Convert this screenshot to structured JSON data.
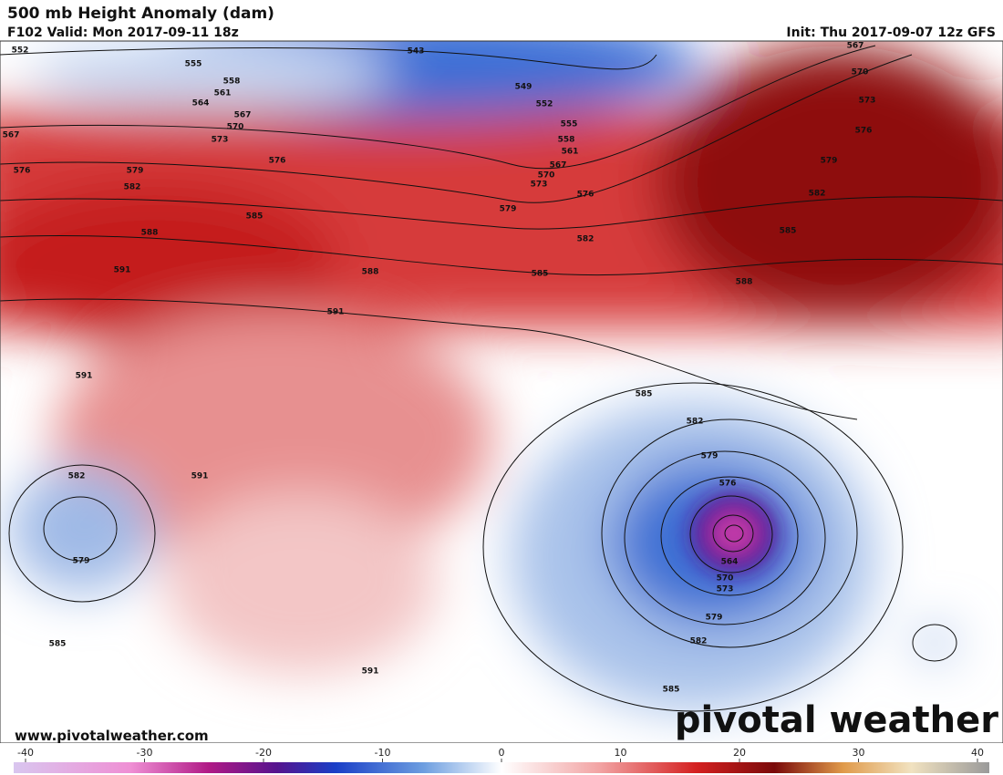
{
  "header": {
    "title": "500 mb Height Anomaly (dam)",
    "valid": "F102 Valid: Mon 2017-09-11 18z",
    "init": "Thu 2017-09-07 12z GFS",
    "init_label": "Init:"
  },
  "map": {
    "contour_labels": [
      "552",
      "555",
      "558",
      "561",
      "564",
      "567",
      "570",
      "573",
      "576",
      "579",
      "582",
      "585",
      "588",
      "591",
      "588",
      "591",
      "567",
      "576",
      "543",
      "549",
      "552",
      "555",
      "558",
      "561",
      "567",
      "570",
      "573",
      "576",
      "579",
      "582",
      "585",
      "567",
      "570",
      "573",
      "576",
      "579",
      "582",
      "585",
      "588",
      "591",
      "591",
      "582",
      "579",
      "585",
      "585",
      "582",
      "579",
      "576",
      "564",
      "570",
      "573",
      "579",
      "582",
      "585",
      "591"
    ]
  },
  "colorbar": {
    "range": [
      -40,
      40
    ],
    "ticks": [
      -40,
      -30,
      -20,
      -10,
      0,
      10,
      20,
      30,
      40
    ]
  },
  "footer": {
    "website": "www.pivotalweather.com",
    "logo": "pivotal weather"
  }
}
